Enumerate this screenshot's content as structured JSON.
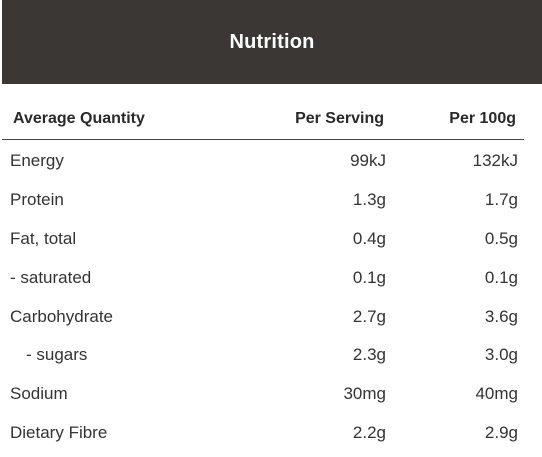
{
  "header": {
    "title": "Nutrition"
  },
  "table": {
    "columns": [
      "Average Quantity",
      "Per Serving",
      "Per 100g"
    ],
    "rows": [
      {
        "name": "Energy",
        "per_serving": "99kJ",
        "per_100g": "132kJ"
      },
      {
        "name": "Protein",
        "per_serving": "1.3g",
        "per_100g": "1.7g"
      },
      {
        "name": "Fat, total",
        "per_serving": "0.4g",
        "per_100g": "0.5g"
      },
      {
        "name": "- saturated",
        "per_serving": "0.1g",
        "per_100g": "0.1g"
      },
      {
        "name": "Carbohydrate",
        "per_serving": "2.7g",
        "per_100g": "3.6g"
      },
      {
        "name": "- sugars",
        "per_serving": "2.3g",
        "per_100g": "3.0g"
      },
      {
        "name": "Sodium",
        "per_serving": "30mg",
        "per_100g": "40mg"
      },
      {
        "name": "Dietary Fibre",
        "per_serving": "2.2g",
        "per_100g": "2.9g"
      }
    ]
  },
  "colors": {
    "header_bg": "#3a3734",
    "header_text": "#ffffff",
    "text": "#333333"
  }
}
